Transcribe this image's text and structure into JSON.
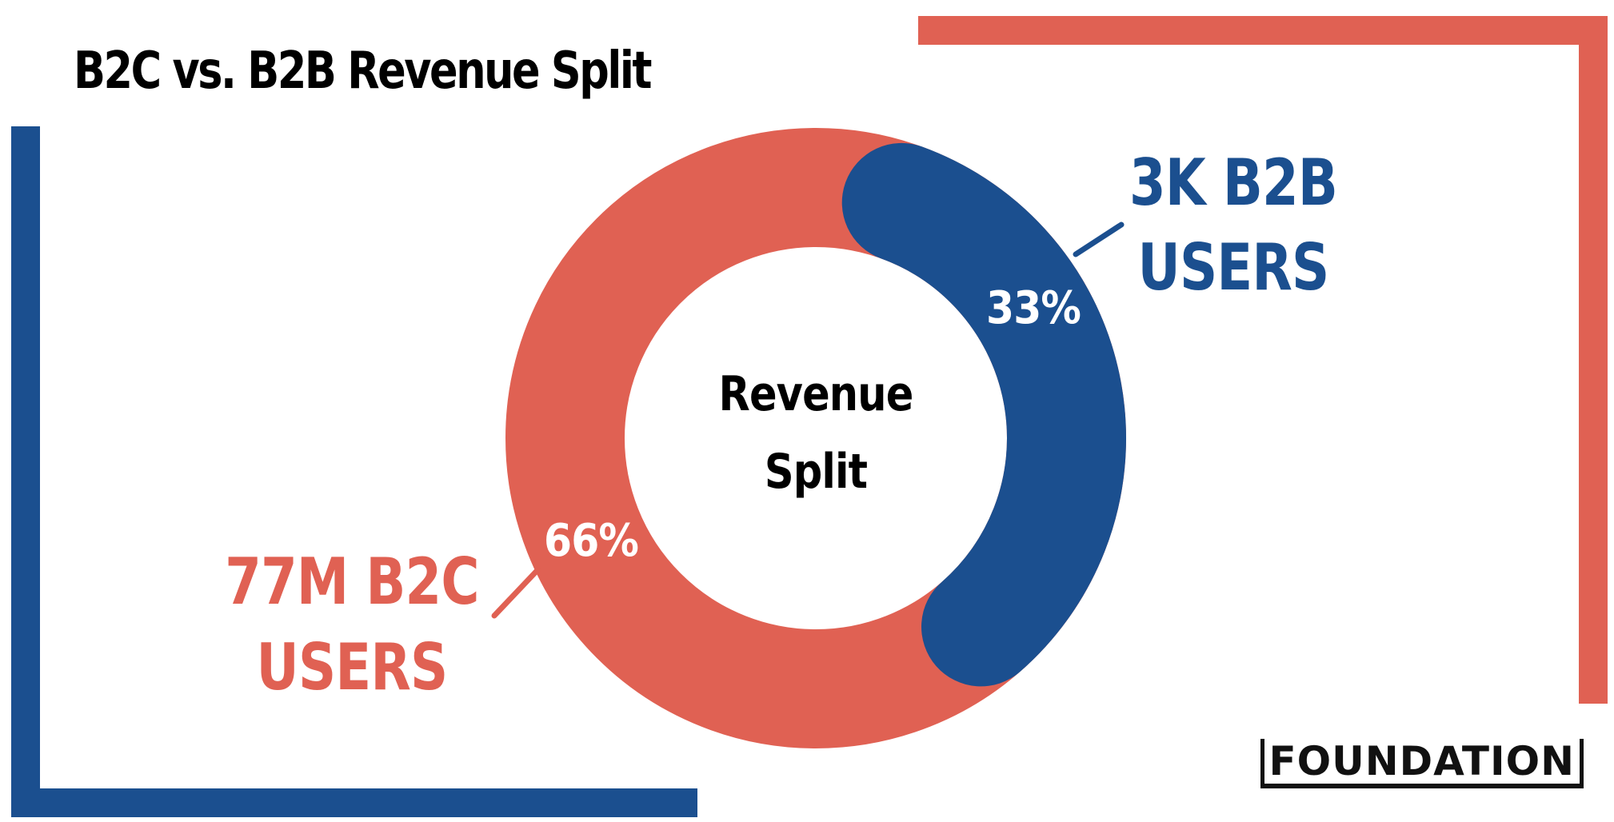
{
  "title": "B2C vs. B2B Revenue Split",
  "brand": {
    "logo_text": "FOUNDATION"
  },
  "colors": {
    "b2c": "#E06153",
    "b2b": "#1B4F8F",
    "text": "#000000",
    "inner_label": "#FFFFFF",
    "frame_red": "#E06153",
    "frame_blue": "#1B4F8F"
  },
  "chart_data": {
    "type": "pie",
    "style": "donut",
    "title": "B2C vs. B2B Revenue Split",
    "center_label": [
      "Revenue",
      "Split"
    ],
    "slices": [
      {
        "name": "B2C",
        "value": 66,
        "label": "66%",
        "callout": [
          "77M B2C",
          "USERS"
        ],
        "color": "#E06153"
      },
      {
        "name": "B2B",
        "value": 33,
        "label": "33%",
        "callout": [
          "3K B2B",
          "USERS"
        ],
        "color": "#1B4F8F"
      }
    ]
  }
}
